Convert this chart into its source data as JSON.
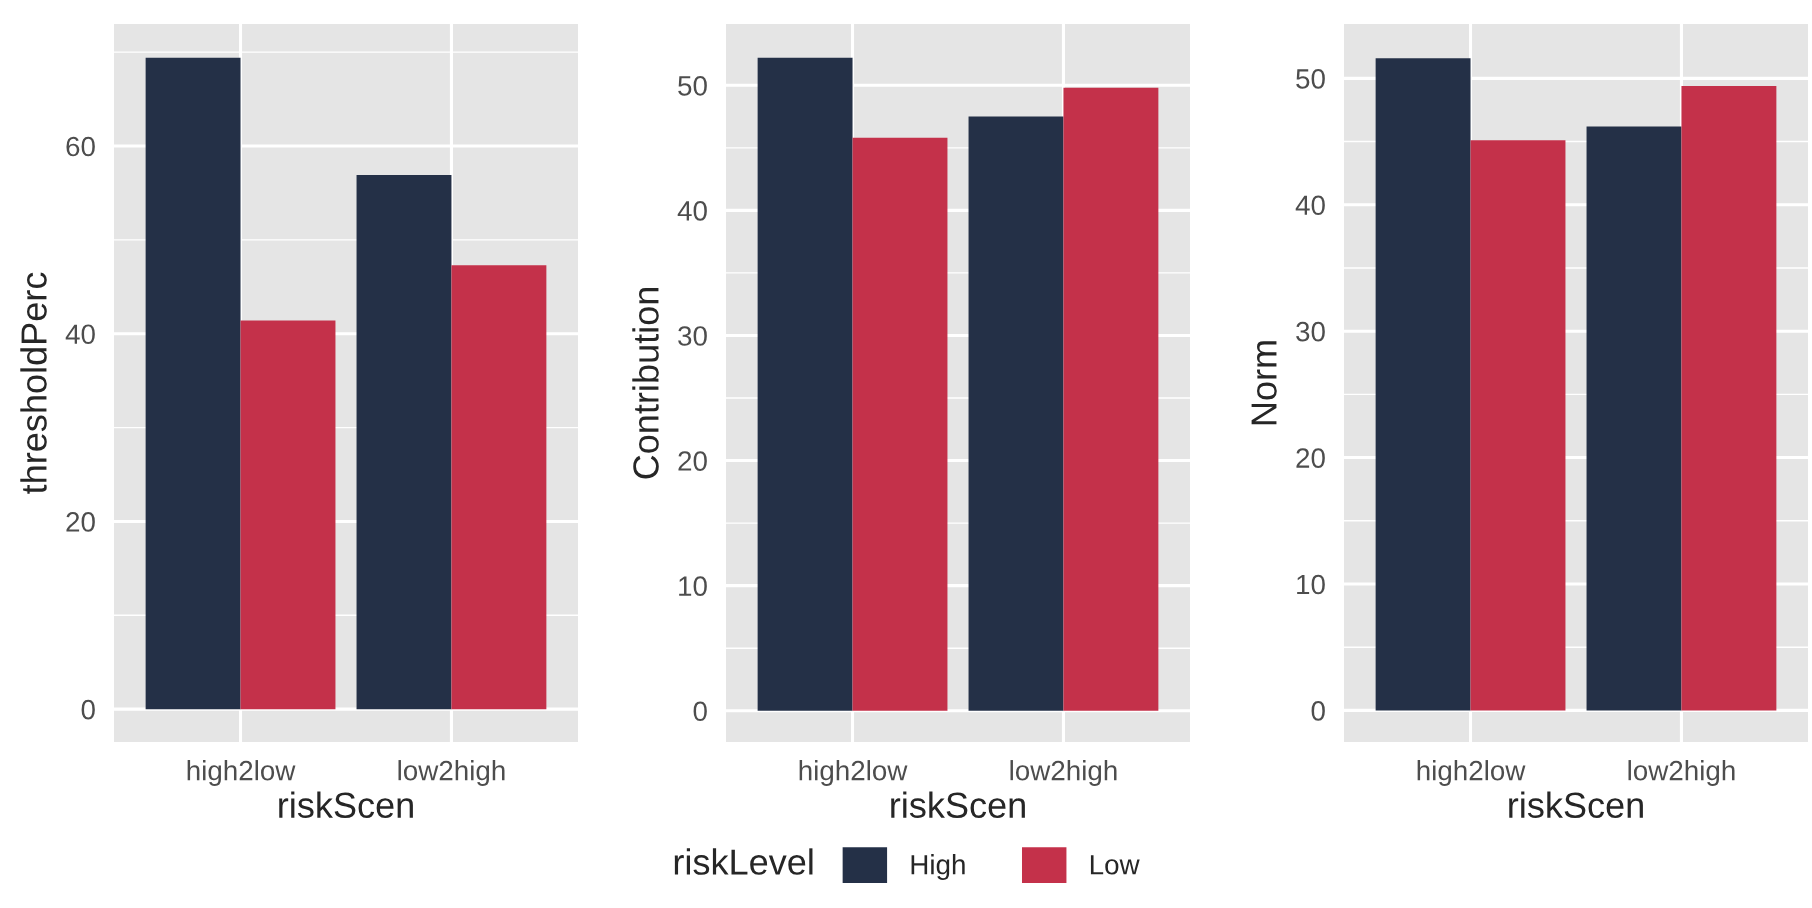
{
  "chart_data": [
    {
      "type": "bar",
      "xlabel": "riskScen",
      "ylabel": "thresholdPerc",
      "categories": [
        "high2low",
        "low2high"
      ],
      "legend_title": "riskLevel",
      "legend": "bottom",
      "grid": true,
      "series": [
        {
          "name": "High",
          "color": "#243047",
          "values": [
            69.4,
            56.9
          ]
        },
        {
          "name": "Low",
          "color": "#c4314a",
          "values": [
            41.4,
            47.3
          ]
        }
      ],
      "ylim": [
        -3.5,
        73.0
      ],
      "yticks": [
        0,
        20,
        40,
        60
      ]
    },
    {
      "type": "bar",
      "xlabel": "riskScen",
      "ylabel": "Contribution",
      "categories": [
        "high2low",
        "low2high"
      ],
      "grid": true,
      "series": [
        {
          "color": "#243047",
          "values": [
            52.2,
            47.5
          ]
        },
        {
          "color": "#c4314a",
          "values": [
            45.8,
            49.8
          ]
        }
      ],
      "ylim": [
        -2.5,
        54.9
      ],
      "yticks": [
        0,
        10,
        20,
        30,
        40,
        50
      ]
    },
    {
      "type": "bar",
      "xlabel": "riskScen",
      "ylabel": "Norm",
      "categories": [
        "high2low",
        "low2high"
      ],
      "grid": true,
      "series": [
        {
          "color": "#243047",
          "values": [
            51.6,
            46.2
          ]
        },
        {
          "color": "#c4314a",
          "values": [
            45.1,
            49.4
          ]
        }
      ],
      "ylim": [
        -2.5,
        54.3
      ],
      "yticks": [
        0,
        10,
        20,
        30,
        40,
        50
      ]
    }
  ]
}
